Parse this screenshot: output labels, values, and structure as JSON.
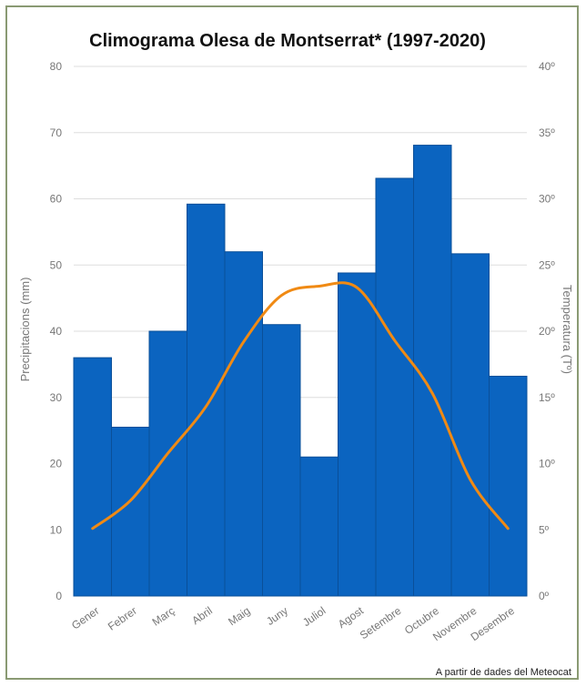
{
  "chart_data": {
    "type": "bar",
    "title": "Climograma Olesa de Montserrat* (1997-2020)",
    "categories": [
      "Gener",
      "Febrer",
      "Març",
      "Abril",
      "Maig",
      "Juny",
      "Juliol",
      "Agost",
      "Setembre",
      "Octubre",
      "Novembre",
      "Desembre"
    ],
    "series": [
      {
        "type": "bar",
        "values": [
          36,
          25.5,
          40,
          59.2,
          52,
          41,
          21,
          48.8,
          63.1,
          68.1,
          51.7,
          33.2
        ],
        "axis": "left",
        "color": "#0b64c0"
      },
      {
        "type": "line",
        "values": [
          5.1,
          7.2,
          10.8,
          14.3,
          19.2,
          22.7,
          23.4,
          23.3,
          19.3,
          15.3,
          8.8,
          5.1
        ],
        "axis": "right",
        "color": "#f08a14"
      }
    ],
    "ylabel": "Precipitacions (mm)",
    "ylabel_right": "Temperatura (Tº)",
    "ylim": [
      0,
      80
    ],
    "ylim_right": [
      0,
      40
    ],
    "yticks": [
      "0",
      "10",
      "20",
      "30",
      "40",
      "50",
      "60",
      "70",
      "80"
    ],
    "yticks_right": [
      "0º",
      "5º",
      "10º",
      "15º",
      "20º",
      "25º",
      "30º",
      "35º",
      "40º"
    ],
    "grid": true
  },
  "source": "A partir de dades del Meteocat"
}
